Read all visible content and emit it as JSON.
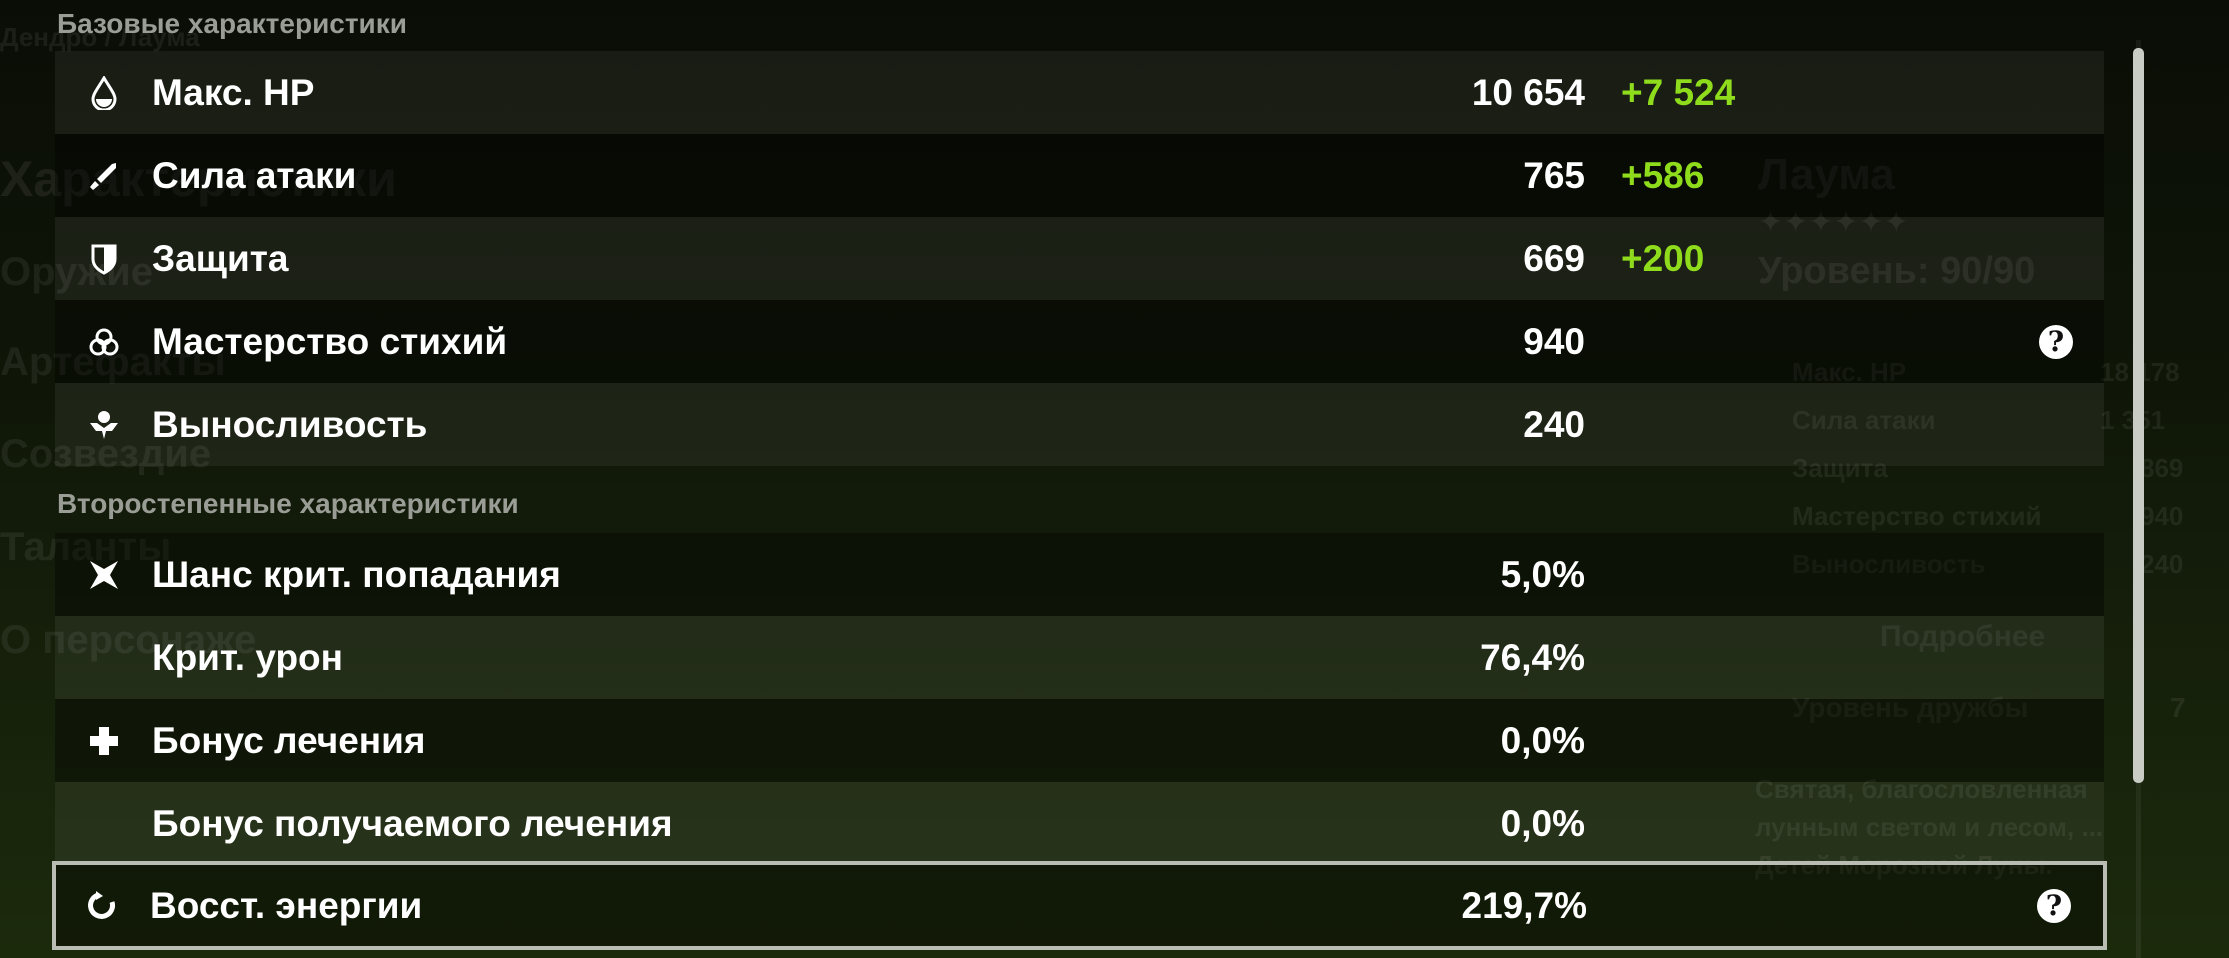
{
  "background": {
    "element_path": "Дендро / Лаума",
    "menu": [
      "Характеристики",
      "Оружие",
      "Артефакты",
      "Созвездие",
      "Таланты",
      "О персонаже"
    ],
    "character": {
      "name": "Лаума",
      "stars": "✦✦✦✦✦✦",
      "level": "Уровень: 90/90",
      "stats": [
        {
          "label": "Макс. HP",
          "value": "18 178"
        },
        {
          "label": "Сила атаки",
          "value": "1 351"
        },
        {
          "label": "Защита",
          "value": "869"
        },
        {
          "label": "Мастерство стихий",
          "value": "940"
        },
        {
          "label": "Выносливость",
          "value": "240"
        }
      ],
      "details_button": "Подробнее",
      "friendship_label": "Уровень дружбы",
      "friendship_value": "7",
      "description": "Святая, благословленная лунным светом и лесом, ... Детей Морозной Луны."
    }
  },
  "base": {
    "title": "Базовые характеристики",
    "rows": [
      {
        "icon": "hp-drop-icon",
        "label": "Макс. HP",
        "value": "10 654",
        "bonus": "+7 524"
      },
      {
        "icon": "sword-icon",
        "label": "Сила атаки",
        "value": "765",
        "bonus": "+586"
      },
      {
        "icon": "shield-icon",
        "label": "Защита",
        "value": "669",
        "bonus": "+200"
      },
      {
        "icon": "elemental-mastery-icon",
        "label": "Мастерство стихий",
        "value": "940",
        "help": "?"
      },
      {
        "icon": "stamina-icon",
        "label": "Выносливость",
        "value": "240"
      }
    ]
  },
  "advanced": {
    "title": "Второстепенные характеристики",
    "rows": [
      {
        "icon": "crit-rate-icon",
        "label": "Шанс крит. попадания",
        "value": "5,0%"
      },
      {
        "label": "Крит. урон",
        "value": "76,4%"
      },
      {
        "icon": "healing-cross-icon",
        "label": "Бонус лечения",
        "value": "0,0%"
      },
      {
        "label": "Бонус получаемого лечения",
        "value": "0,0%"
      },
      {
        "icon": "energy-recharge-icon",
        "label": "Восст. энергии",
        "value": "219,7%",
        "help": "?",
        "selected": true
      }
    ]
  },
  "colors": {
    "bonus": "#8fdc1c",
    "selected_border": "#b9bdb3"
  }
}
